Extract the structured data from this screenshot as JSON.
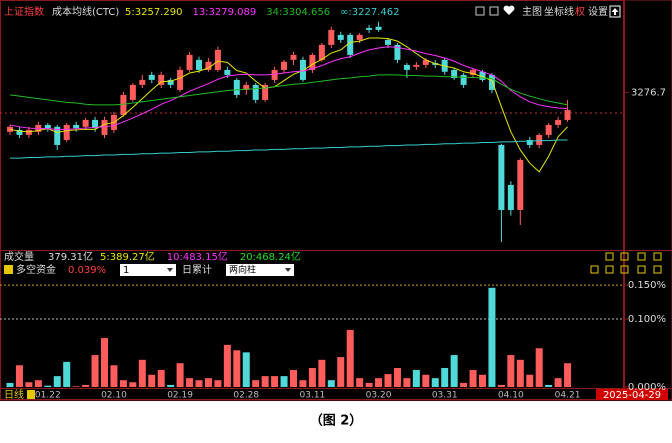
{
  "toolbar": [
    "主图",
    "坐标线",
    "权",
    "设置"
  ],
  "volume_header": {
    "label": "成交量",
    "total": "379.31亿",
    "ma": [
      {
        "text": "5:389.27亿",
        "color": "#e6e600"
      },
      {
        "text": "10:483.15亿",
        "color": "#ff33ff"
      },
      {
        "text": "20:468.24亿",
        "color": "#22dd22"
      }
    ]
  },
  "caption": "（图 2）",
  "chart_data": [
    {
      "type": "candlestick",
      "title": "上证指数",
      "subtitle": "成本均线(CTC)",
      "up_color": "#ff5c5c",
      "down_color": "#4fd9d9",
      "ylim": [
        3025,
        3412
      ],
      "yticks": [
        3276.7
      ],
      "reference_line": 3244,
      "open": [
        3214,
        3217,
        3209,
        3214,
        3225,
        3222,
        3201,
        3225,
        3222,
        3233,
        3209,
        3217,
        3241,
        3265,
        3289,
        3305,
        3289,
        3297,
        3281,
        3313,
        3329,
        3313,
        3313,
        3313,
        3297,
        3281,
        3289,
        3265,
        3297,
        3313,
        3329,
        3329,
        3313,
        3329,
        3353,
        3369,
        3369,
        3361,
        3380,
        3382,
        3361,
        3353,
        3321,
        3318,
        3321,
        3324,
        3329,
        3313,
        3305,
        3305,
        3310,
        3305,
        3193,
        3129,
        3089,
        3201,
        3193,
        3209,
        3225,
        3233
      ],
      "close": [
        3222,
        3209,
        3217,
        3225,
        3220,
        3193,
        3225,
        3220,
        3233,
        3220,
        3233,
        3241,
        3273,
        3289,
        3297,
        3297,
        3305,
        3289,
        3313,
        3337,
        3313,
        3326,
        3345,
        3305,
        3273,
        3289,
        3265,
        3289,
        3313,
        3326,
        3337,
        3297,
        3337,
        3353,
        3377,
        3361,
        3337,
        3369,
        3377,
        3377,
        3353,
        3329,
        3313,
        3321,
        3329,
        3321,
        3310,
        3300,
        3289,
        3313,
        3297,
        3281,
        3089,
        3089,
        3169,
        3193,
        3209,
        3225,
        3233,
        3249
      ],
      "high": [
        3225,
        3222,
        3222,
        3230,
        3228,
        3225,
        3228,
        3230,
        3236,
        3238,
        3238,
        3246,
        3278,
        3292,
        3305,
        3310,
        3310,
        3300,
        3318,
        3342,
        3334,
        3332,
        3350,
        3318,
        3300,
        3294,
        3292,
        3292,
        3318,
        3329,
        3342,
        3334,
        3340,
        3356,
        3382,
        3374,
        3372,
        3372,
        3385,
        3390,
        3364,
        3356,
        3324,
        3326,
        3332,
        3329,
        3332,
        3316,
        3308,
        3316,
        3313,
        3308,
        3195,
        3135,
        3172,
        3206,
        3212,
        3228,
        3238,
        3265
      ],
      "low": [
        3209,
        3204,
        3204,
        3209,
        3214,
        3185,
        3198,
        3214,
        3217,
        3214,
        3204,
        3212,
        3238,
        3262,
        3284,
        3292,
        3284,
        3284,
        3278,
        3310,
        3308,
        3310,
        3310,
        3300,
        3268,
        3273,
        3260,
        3262,
        3292,
        3308,
        3321,
        3294,
        3308,
        3326,
        3348,
        3356,
        3332,
        3356,
        3372,
        3374,
        3348,
        3324,
        3300,
        3313,
        3316,
        3316,
        3305,
        3297,
        3284,
        3300,
        3294,
        3276,
        3038,
        3080,
        3065,
        3188,
        3188,
        3204,
        3220,
        3230
      ],
      "series": [
        {
          "name": "5:3257.290",
          "color": "#e6e600",
          "values": [
            3218,
            3215,
            3214,
            3216,
            3219,
            3213,
            3216,
            3217,
            3218,
            3218,
            3226,
            3229,
            3240,
            3253,
            3267,
            3281,
            3294,
            3295,
            3300,
            3308,
            3311,
            3316,
            3327,
            3325,
            3312,
            3308,
            3295,
            3284,
            3286,
            3296,
            3306,
            3312,
            3322,
            3330,
            3340,
            3345,
            3357,
            3359,
            3364,
            3364,
            3363,
            3359,
            3350,
            3339,
            3329,
            3323,
            3319,
            3316,
            3310,
            3307,
            3302,
            3296,
            3254,
            3214,
            3185,
            3164,
            3150,
            3175,
            3206,
            3222
          ]
        },
        {
          "name": "13:3279.089",
          "color": "#ff33ff",
          "values": [
            3225,
            3222,
            3220,
            3219,
            3219,
            3218,
            3218,
            3219,
            3220,
            3221,
            3222,
            3224,
            3230,
            3236,
            3243,
            3250,
            3258,
            3264,
            3271,
            3279,
            3285,
            3291,
            3298,
            3303,
            3305,
            3306,
            3305,
            3305,
            3306,
            3308,
            3310,
            3311,
            3315,
            3320,
            3326,
            3331,
            3334,
            3340,
            3345,
            3348,
            3350,
            3349,
            3346,
            3343,
            3339,
            3336,
            3332,
            3327,
            3320,
            3315,
            3310,
            3305,
            3295,
            3280,
            3270,
            3262,
            3257,
            3254,
            3252,
            3251
          ]
        },
        {
          "name": "34:3304.656",
          "color": "#22bb22",
          "values": [
            3273,
            3271,
            3269,
            3267,
            3265,
            3263,
            3261,
            3260,
            3258,
            3257,
            3257,
            3257,
            3258,
            3260,
            3262,
            3264,
            3266,
            3268,
            3270,
            3272,
            3274,
            3276,
            3278,
            3280,
            3281,
            3282,
            3283,
            3284,
            3286,
            3288,
            3290,
            3291,
            3293,
            3295,
            3297,
            3299,
            3300,
            3302,
            3303,
            3305,
            3305,
            3305,
            3304,
            3304,
            3303,
            3303,
            3302,
            3302,
            3301,
            3301,
            3300,
            3299,
            3290,
            3282,
            3276,
            3271,
            3267,
            3263,
            3260,
            3257
          ]
        },
        {
          "name": "∞:3227.462",
          "color": "#33cccc",
          "values": [
            3172,
            3172,
            3173,
            3173,
            3174,
            3174,
            3175,
            3175,
            3176,
            3176,
            3177,
            3177,
            3178,
            3178,
            3179,
            3179,
            3180,
            3180,
            3181,
            3181,
            3182,
            3182,
            3183,
            3183,
            3184,
            3184,
            3185,
            3185,
            3186,
            3186,
            3187,
            3187,
            3188,
            3188,
            3189,
            3189,
            3190,
            3190,
            3191,
            3191,
            3192,
            3192,
            3193,
            3193,
            3194,
            3194,
            3195,
            3195,
            3196,
            3196,
            3197,
            3197,
            3198,
            3198,
            3199,
            3199,
            3200,
            3200,
            3201,
            3201
          ]
        }
      ]
    },
    {
      "type": "bar",
      "title": "多空资金",
      "header_value": "0.039%",
      "controls": [
        "1",
        "日累计",
        "两向柱"
      ],
      "period": "日线",
      "cursor_date": "2025-04-29",
      "categories": [
        null,
        null,
        null,
        null,
        "01.22",
        null,
        null,
        null,
        null,
        null,
        null,
        "02.10",
        null,
        null,
        null,
        null,
        null,
        null,
        "02.19",
        null,
        null,
        null,
        null,
        null,
        null,
        "02.28",
        null,
        null,
        null,
        null,
        null,
        null,
        "03.11",
        null,
        null,
        null,
        null,
        null,
        null,
        "03.20",
        null,
        null,
        null,
        null,
        null,
        null,
        "03.31",
        null,
        null,
        null,
        null,
        null,
        null,
        "04.10",
        null,
        null,
        null,
        null,
        null,
        "04.21"
      ],
      "values": [
        0.006,
        0.032,
        0.007,
        0.01,
        0.002,
        0.016,
        0.037,
        0.001,
        0.003,
        0.047,
        0.072,
        0.032,
        0.01,
        0.007,
        0.04,
        0.018,
        0.025,
        0.003,
        0.035,
        0.013,
        0.01,
        0.013,
        0.01,
        0.062,
        0.054,
        0.051,
        0.01,
        0.016,
        0.016,
        0.016,
        0.025,
        0.01,
        0.028,
        0.04,
        0.01,
        0.044,
        0.084,
        0.013,
        0.006,
        0.013,
        0.019,
        0.028,
        0.013,
        0.025,
        0.018,
        0.013,
        0.028,
        0.047,
        0.006,
        0.025,
        0.018,
        0.146,
        0.003,
        0.047,
        0.04,
        0.018,
        0.057,
        0.003,
        0.013,
        0.035
      ],
      "colors": [
        "#4fd9d9",
        "#ff5c5c",
        "#ff5c5c",
        "#ff5c5c",
        "#4fd9d9",
        "#4fd9d9",
        "#4fd9d9",
        "#ff5c5c",
        "#ff5c5c",
        "#ff5c5c",
        "#ff5c5c",
        "#ff5c5c",
        "#ff5c5c",
        "#ff5c5c",
        "#ff5c5c",
        "#ff5c5c",
        "#ff5c5c",
        "#4fd9d9",
        "#ff5c5c",
        "#ff5c5c",
        "#ff5c5c",
        "#ff5c5c",
        "#ff5c5c",
        "#ff5c5c",
        "#ff5c5c",
        "#4fd9d9",
        "#ff5c5c",
        "#ff5c5c",
        "#ff5c5c",
        "#4fd9d9",
        "#ff5c5c",
        "#ff5c5c",
        "#ff5c5c",
        "#ff5c5c",
        "#4fd9d9",
        "#ff5c5c",
        "#ff5c5c",
        "#ff5c5c",
        "#ff5c5c",
        "#ff5c5c",
        "#ff5c5c",
        "#ff5c5c",
        "#ff5c5c",
        "#4fd9d9",
        "#ff5c5c",
        "#4fd9d9",
        "#4fd9d9",
        "#4fd9d9",
        "#ff5c5c",
        "#ff5c5c",
        "#ff5c5c",
        "#4fd9d9",
        "#ff5c5c",
        "#ff5c5c",
        "#ff5c5c",
        "#ff5c5c",
        "#ff5c5c",
        "#4fd9d9",
        "#ff5c5c",
        "#ff5c5c"
      ],
      "ylim": [
        0,
        0.156
      ],
      "yticks": [
        {
          "value": 0,
          "label": "0.000%"
        },
        {
          "value": 0.1,
          "label": "0.100%"
        },
        {
          "value": 0.15,
          "label": "0.150%"
        }
      ],
      "grid": true
    }
  ]
}
